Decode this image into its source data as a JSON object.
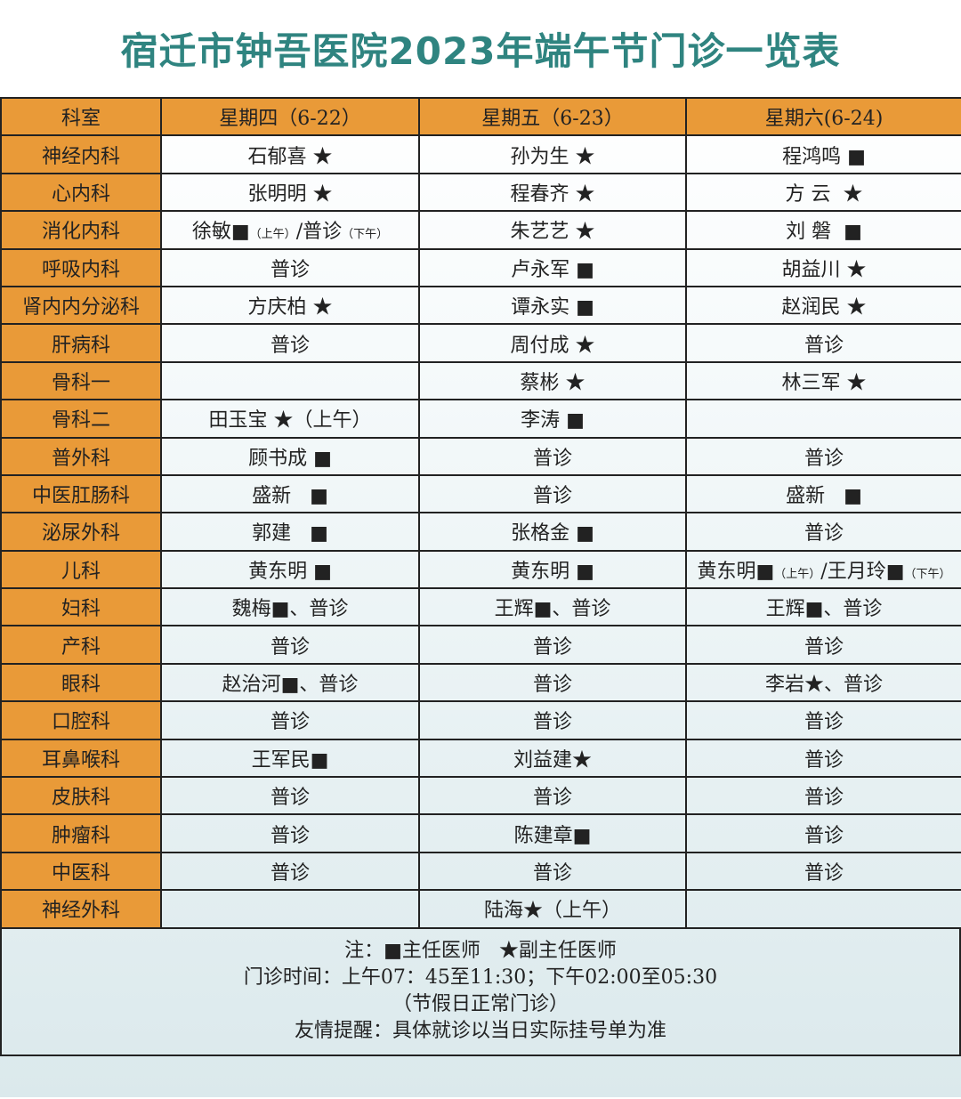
{
  "title": "宿迁市钟吾医院2023年端午节门诊一览表",
  "colors": {
    "title": "#2f8480",
    "header_bg": "#e99a38",
    "row_bg_bottom": "#dbe9ec"
  },
  "table": {
    "headers": [
      "科室",
      "星期四（6-22）",
      "星期五（6-23）",
      "星期六(6-24)"
    ],
    "rows": [
      [
        "神经内科",
        "石郁喜 ★",
        "孙为生 ★",
        "程鸿鸣 ■"
      ],
      [
        "心内科",
        "张明明 ★",
        "程春齐 ★",
        "方 云  ★"
      ],
      [
        "消化内科",
        "徐敏■（上午）/普诊（下午）",
        "朱艺艺 ★",
        "刘 磐  ■"
      ],
      [
        "呼吸内科",
        "普诊",
        "卢永军 ■",
        "胡益川 ★"
      ],
      [
        "肾内内分泌科",
        "方庆柏 ★",
        "谭永实 ■",
        "赵润民 ★"
      ],
      [
        "肝病科",
        "普诊",
        "周付成 ★",
        "普诊"
      ],
      [
        "骨科一",
        "",
        "蔡彬 ★",
        "林三军 ★"
      ],
      [
        "骨科二",
        "田玉宝 ★（上午）",
        "李涛 ■",
        ""
      ],
      [
        "普外科",
        "顾书成 ■",
        "普诊",
        "普诊"
      ],
      [
        "中医肛肠科",
        "盛新   ■",
        "普诊",
        "盛新   ■"
      ],
      [
        "泌尿外科",
        "郭建   ■",
        "张格金 ■",
        "普诊"
      ],
      [
        "儿科",
        "黄东明 ■",
        "黄东明 ■",
        "黄东明■（上午）/王月玲■（下午）"
      ],
      [
        "妇科",
        "魏梅■、普诊",
        "王辉■、普诊",
        "王辉■、普诊"
      ],
      [
        "产科",
        "普诊",
        "普诊",
        "普诊"
      ],
      [
        "眼科",
        "赵治河■、普诊",
        "普诊",
        "李岩★、普诊"
      ],
      [
        "口腔科",
        "普诊",
        "普诊",
        "普诊"
      ],
      [
        "耳鼻喉科",
        "王军民■",
        "刘益建★",
        "普诊"
      ],
      [
        "皮肤科",
        "普诊",
        "普诊",
        "普诊"
      ],
      [
        "肿瘤科",
        "普诊",
        "陈建章■",
        "普诊"
      ],
      [
        "中医科",
        "普诊",
        "普诊",
        "普诊"
      ],
      [
        "神经外科",
        "",
        "陆海★（上午）",
        ""
      ]
    ]
  },
  "footer": {
    "legend": "注：■主任医师   ★副主任医师",
    "hours": "门诊时间：上午07：45至11:30；下午02:00至05:30",
    "holiday": "（节假日正常门诊）",
    "reminder": "友情提醒：具体就诊以当日实际挂号单为准"
  }
}
